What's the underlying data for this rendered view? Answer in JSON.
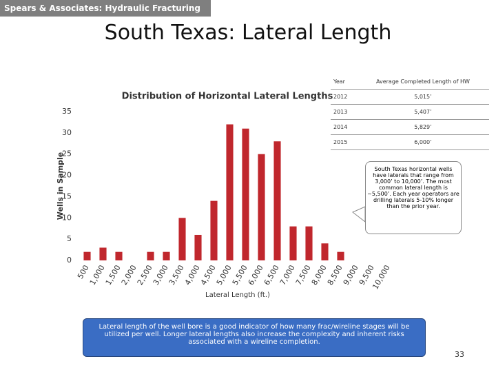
{
  "header": "Spears & Associates:  Hydraulic Fracturing Market",
  "slide_title": "South Texas:  Lateral Length",
  "chart_data": {
    "type": "bar",
    "title": "Distribution of Horizontal Lateral Lengths",
    "x_label": "Lateral Length (ft.)",
    "y_label": "Wells in Sample",
    "categories": [
      "500",
      "1,000",
      "1,500",
      "2,000",
      "2,500",
      "3,000",
      "3,500",
      "4,000",
      "4,500",
      "5,000",
      "5,500",
      "6,000",
      "6,500",
      "7,000",
      "7,500",
      "8,000",
      "8,500",
      "9,000",
      "9,500",
      "10,000"
    ],
    "values": [
      2,
      3,
      2,
      0,
      2,
      2,
      10,
      6,
      14,
      32,
      31,
      25,
      28,
      8,
      8,
      4,
      2,
      0,
      0,
      0
    ],
    "color": "#c0272d",
    "ylim": [
      0,
      35
    ],
    "yticks": [
      0,
      5,
      10,
      15,
      20,
      25,
      30,
      35
    ],
    "grid": false
  },
  "table": {
    "header": [
      "Year",
      "Average Completed Length of HW"
    ],
    "rows": [
      [
        "2012",
        "5,015’"
      ],
      [
        "2013",
        "5,407’"
      ],
      [
        "2014",
        "5,829’"
      ],
      [
        "2015",
        "6,000’"
      ]
    ]
  },
  "callout": "South Texas horizontal wells have laterals that range from 3,000’ to 10,000’.  The most common lateral length is ~5,500’.  Each year operators are drilling laterals 5-10% longer than the prior year.",
  "note": "Lateral length of the well bore is a good indicator of how many frac/wireline stages will be utilized per well.  Longer lateral lengths also increase the complexity and inherent risks associated with a wireline completion.",
  "page_number": "33"
}
